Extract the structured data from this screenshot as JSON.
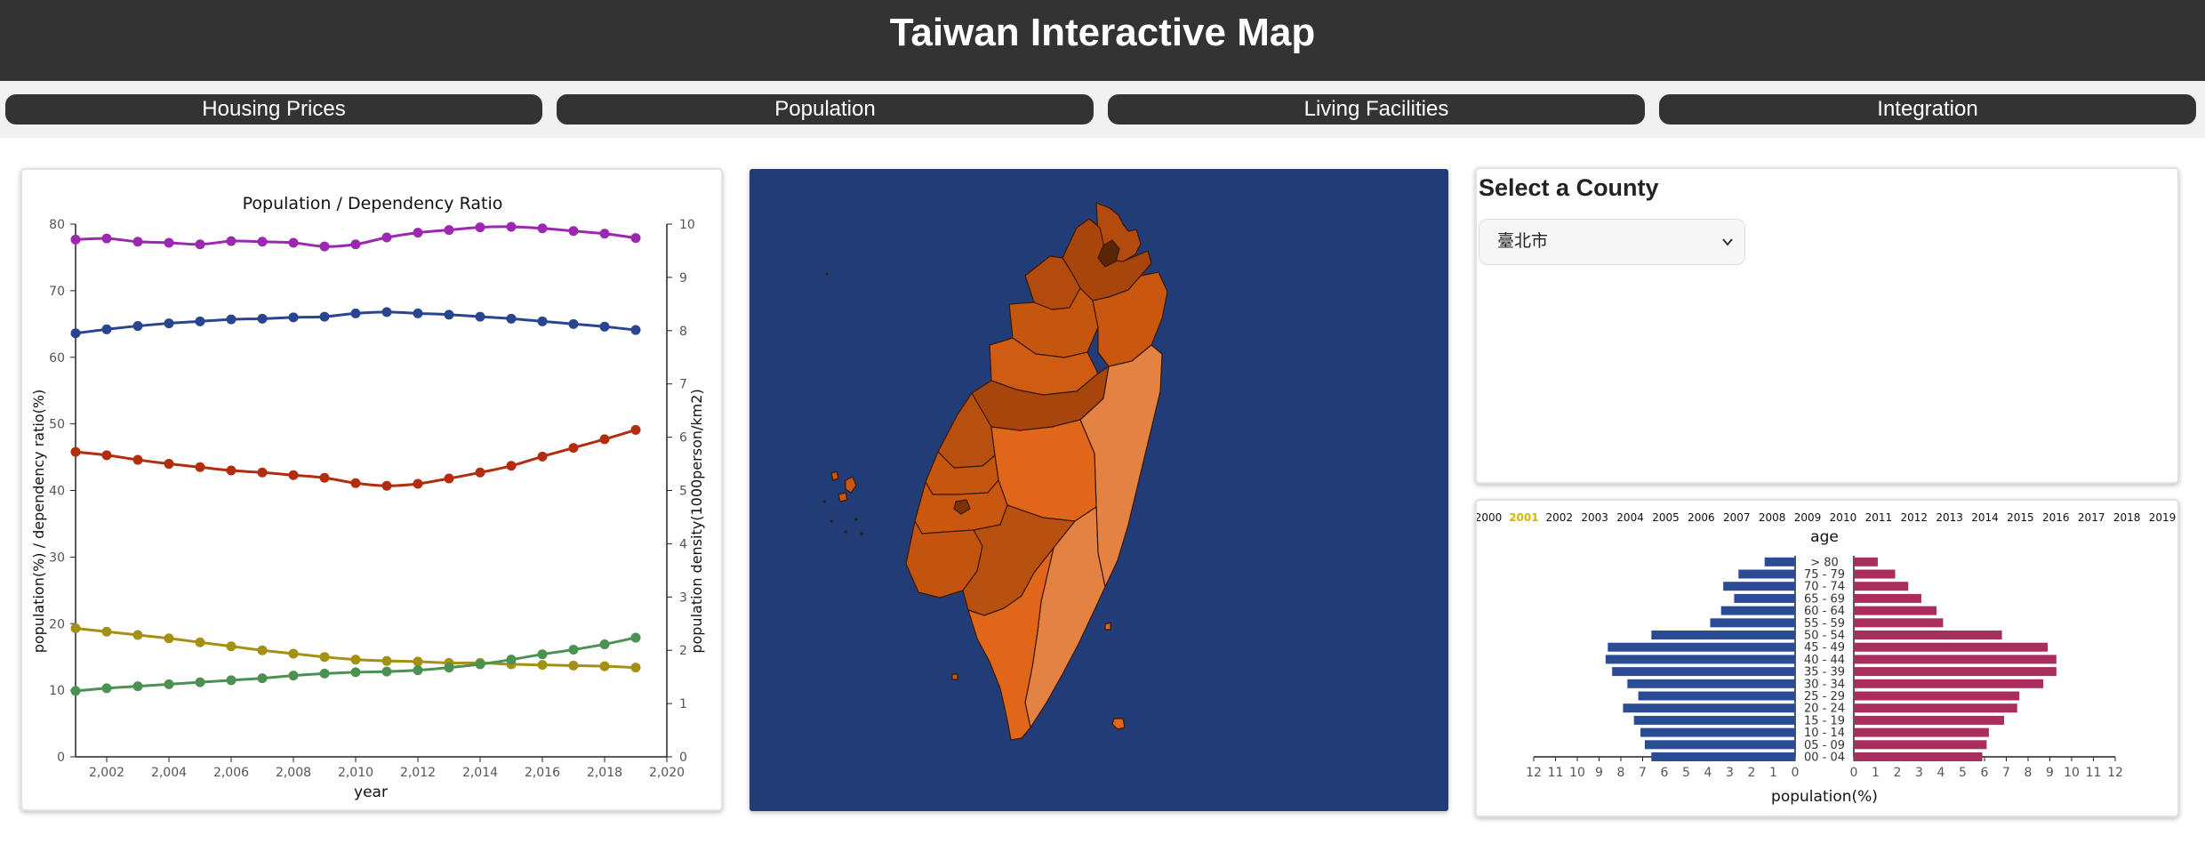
{
  "page": {
    "title": "Taiwan Interactive Map"
  },
  "nav": {
    "tabs": [
      {
        "label": "Housing Prices"
      },
      {
        "label": "Population"
      },
      {
        "label": "Living Facilities"
      },
      {
        "label": "Integration"
      }
    ]
  },
  "county_panel": {
    "title": "Select a County",
    "selected": "臺北市"
  },
  "colors": {
    "header_bg": "#333333",
    "map_bg": "#223c78",
    "series_purple": "#9c27b0",
    "series_blue": "#2a4590",
    "series_red": "#b22d0e",
    "series_yellow": "#a49014",
    "series_green": "#4a9152",
    "male_bar": "#2a4c94",
    "female_bar": "#a82e5e",
    "year_highlight": "#d4b800"
  },
  "chart_data": [
    {
      "type": "line",
      "title": "Population / Dependency Ratio",
      "xlabel": "year",
      "ylabel": "population(%) / dependency ratio(%)",
      "ylabel_right": "population density(1000person/km2)",
      "x": [
        2001,
        2002,
        2003,
        2004,
        2005,
        2006,
        2007,
        2008,
        2009,
        2010,
        2011,
        2012,
        2013,
        2014,
        2015,
        2016,
        2017,
        2018,
        2019
      ],
      "xlim": [
        2001,
        2020
      ],
      "xticks": [
        "2,002",
        "2,004",
        "2,006",
        "2,008",
        "2,010",
        "2,012",
        "2,014",
        "2,016",
        "2,018",
        "2,020"
      ],
      "ylim": [
        0,
        80
      ],
      "yticks": [
        0,
        10,
        20,
        30,
        40,
        50,
        60,
        70,
        80
      ],
      "ylim_right": [
        0,
        10
      ],
      "yticks_right": [
        0,
        1,
        2,
        3,
        4,
        5,
        6,
        7,
        8,
        9,
        10
      ],
      "series": [
        {
          "axis": "right",
          "color": "#9c27b0",
          "values": [
            9.71,
            9.73,
            9.67,
            9.65,
            9.62,
            9.68,
            9.67,
            9.65,
            9.58,
            9.62,
            9.75,
            9.84,
            9.89,
            9.94,
            9.95,
            9.92,
            9.87,
            9.82,
            9.74
          ]
        },
        {
          "axis": "left",
          "color": "#2a4590",
          "values": [
            63.6,
            64.2,
            64.7,
            65.1,
            65.4,
            65.7,
            65.8,
            66.0,
            66.1,
            66.6,
            66.8,
            66.6,
            66.4,
            66.1,
            65.8,
            65.4,
            65.0,
            64.6,
            64.1
          ]
        },
        {
          "axis": "left",
          "color": "#b22d0e",
          "values": [
            45.8,
            45.3,
            44.6,
            44.0,
            43.5,
            43.0,
            42.7,
            42.3,
            41.9,
            41.1,
            40.7,
            41.0,
            41.8,
            42.7,
            43.7,
            45.1,
            46.4,
            47.7,
            49.1
          ]
        },
        {
          "axis": "left",
          "color": "#a49014",
          "values": [
            19.3,
            18.8,
            18.3,
            17.8,
            17.2,
            16.6,
            16.0,
            15.5,
            15.0,
            14.6,
            14.4,
            14.3,
            14.1,
            14.1,
            13.9,
            13.8,
            13.7,
            13.6,
            13.4
          ]
        },
        {
          "axis": "left",
          "color": "#4a9152",
          "values": [
            9.9,
            10.3,
            10.6,
            10.9,
            11.2,
            11.5,
            11.8,
            12.2,
            12.5,
            12.7,
            12.8,
            13.0,
            13.4,
            13.9,
            14.6,
            15.4,
            16.1,
            16.9,
            17.9
          ]
        }
      ]
    },
    {
      "type": "bar",
      "subtype": "population-pyramid",
      "title": "age",
      "xlabel": "population(%)",
      "years": [
        "2000",
        "2001",
        "2002",
        "2003",
        "2004",
        "2005",
        "2006",
        "2007",
        "2008",
        "2009",
        "2010",
        "2011",
        "2012",
        "2013",
        "2014",
        "2015",
        "2016",
        "2017",
        "2018",
        "2019"
      ],
      "selected_year": "2001",
      "categories": [
        "> 80",
        "75 - 79",
        "70 - 74",
        "65 - 69",
        "60 - 64",
        "55 - 59",
        "50 - 54",
        "45 - 49",
        "40 - 44",
        "35 - 39",
        "30 - 34",
        "25 - 29",
        "20 - 24",
        "15 - 19",
        "10 - 14",
        "05 - 09",
        "00 - 04"
      ],
      "xlim": [
        0,
        12
      ],
      "xticks": [
        12,
        11,
        10,
        9,
        8,
        7,
        6,
        5,
        4,
        3,
        2,
        1,
        0
      ],
      "xticks_right": [
        0,
        1,
        2,
        3,
        4,
        5,
        6,
        7,
        8,
        9,
        10,
        11,
        12
      ],
      "series": [
        {
          "side": "left",
          "color": "#2a4c94",
          "values": [
            1.4,
            2.6,
            3.3,
            2.8,
            3.4,
            3.9,
            6.6,
            8.6,
            8.7,
            8.4,
            7.7,
            7.2,
            7.9,
            7.4,
            7.1,
            6.9,
            6.6
          ]
        },
        {
          "side": "right",
          "color": "#a82e5e",
          "values": [
            1.1,
            1.9,
            2.5,
            3.1,
            3.8,
            4.1,
            6.8,
            8.9,
            9.3,
            9.3,
            8.7,
            7.6,
            7.5,
            6.9,
            6.2,
            6.1,
            5.9
          ]
        }
      ]
    }
  ]
}
